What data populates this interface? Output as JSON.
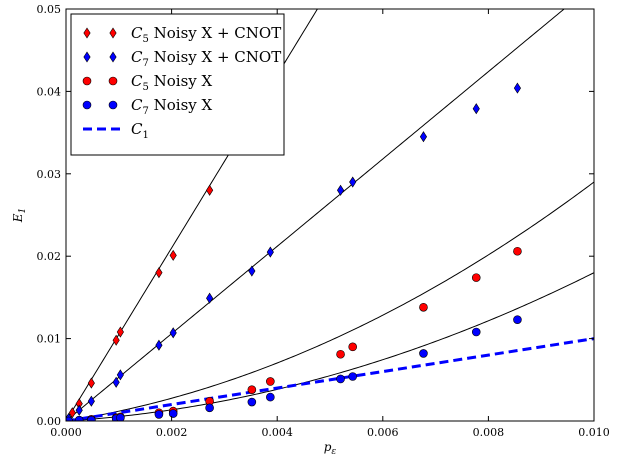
{
  "chart_data": {
    "type": "scatter",
    "title": "",
    "xlabel": "p_ε",
    "ylabel": "E_1",
    "xlim": [
      0.0,
      0.01
    ],
    "ylim": [
      0.0,
      0.05
    ],
    "xticks": [
      0.0,
      0.002,
      0.004,
      0.006,
      0.008,
      0.01
    ],
    "xtick_labels": [
      "0.000",
      "0.002",
      "0.004",
      "0.006",
      "0.008",
      "0.010"
    ],
    "yticks": [
      0.0,
      0.01,
      0.02,
      0.03,
      0.04,
      0.05
    ],
    "ytick_labels": [
      "0.00",
      "0.01",
      "0.02",
      "0.03",
      "0.04",
      "0.05"
    ],
    "grid": false,
    "legend_position": "top-left",
    "series": [
      {
        "id": "c5cnot",
        "name": "C5 Noisy X + CNOT",
        "legend_label": {
          "base": "C",
          "sub": "5",
          "rest": " Noisy X + CNOT"
        },
        "marker": "diamond",
        "color": "#ff0000",
        "x": [
          5e-05,
          0.00012,
          0.00025,
          0.00048,
          0.00095,
          0.00103,
          0.00176,
          0.00203,
          0.00272
        ],
        "y": [
          0.0003,
          0.001,
          0.0021,
          0.0046,
          0.0098,
          0.0108,
          0.018,
          0.0201,
          0.028
        ],
        "fit": {
          "slope": 10.5,
          "quad": 0.0
        }
      },
      {
        "id": "c7cnot",
        "name": "C7 Noisy X + CNOT",
        "legend_label": {
          "base": "C",
          "sub": "7",
          "rest": " Noisy X + CNOT"
        },
        "marker": "diamond",
        "color": "#0000ff",
        "x": [
          5e-05,
          0.00025,
          0.00048,
          0.00095,
          0.00103,
          0.00176,
          0.00203,
          0.00272,
          0.00352,
          0.00387,
          0.0052,
          0.00543,
          0.00677,
          0.00777,
          0.00855
        ],
        "y": [
          0.0003,
          0.0013,
          0.0024,
          0.0047,
          0.0056,
          0.0092,
          0.0107,
          0.0149,
          0.0182,
          0.0205,
          0.028,
          0.029,
          0.0345,
          0.0379,
          0.0404
        ],
        "fit": {
          "slope": 5.3,
          "quad": 0.0
        }
      },
      {
        "id": "c5x",
        "name": "C5 Noisy X",
        "legend_label": {
          "base": "C",
          "sub": "5",
          "rest": " Noisy X"
        },
        "marker": "circle",
        "color": "#ff0000",
        "x": [
          5e-05,
          0.00025,
          0.00048,
          0.00095,
          0.00103,
          0.00176,
          0.00203,
          0.00272,
          0.00352,
          0.00387,
          0.0052,
          0.00543,
          0.00677,
          0.00777,
          0.00855
        ],
        "y": [
          0.0,
          0.0001,
          0.0002,
          0.0004,
          0.0005,
          0.001,
          0.0012,
          0.0024,
          0.0038,
          0.0048,
          0.0081,
          0.009,
          0.0138,
          0.0174,
          0.0206
        ],
        "fit": {
          "slope": 1.0,
          "quad": 190.0
        }
      },
      {
        "id": "c7x",
        "name": "C7 Noisy X",
        "legend_label": {
          "base": "C",
          "sub": "7",
          "rest": " Noisy X"
        },
        "marker": "circle",
        "color": "#0000ff",
        "x": [
          5e-05,
          0.00025,
          0.00048,
          0.00095,
          0.00103,
          0.00176,
          0.00203,
          0.00272,
          0.00352,
          0.00387,
          0.0052,
          0.00543,
          0.00677,
          0.00777,
          0.00855
        ],
        "y": [
          0.0,
          0.0001,
          0.0001,
          0.0003,
          0.0004,
          0.0008,
          0.0009,
          0.0016,
          0.0023,
          0.0029,
          0.0051,
          0.0054,
          0.0082,
          0.0108,
          0.0123
        ],
        "fit": {
          "slope": 0.4,
          "quad": 140.0
        }
      }
    ],
    "reference_line": {
      "name": "C1",
      "legend_label": {
        "base": "C",
        "sub": "1",
        "rest": ""
      },
      "style": "dashed",
      "color": "#0000ff",
      "x": [
        0.0,
        0.01
      ],
      "y": [
        0.0,
        0.01
      ]
    }
  }
}
